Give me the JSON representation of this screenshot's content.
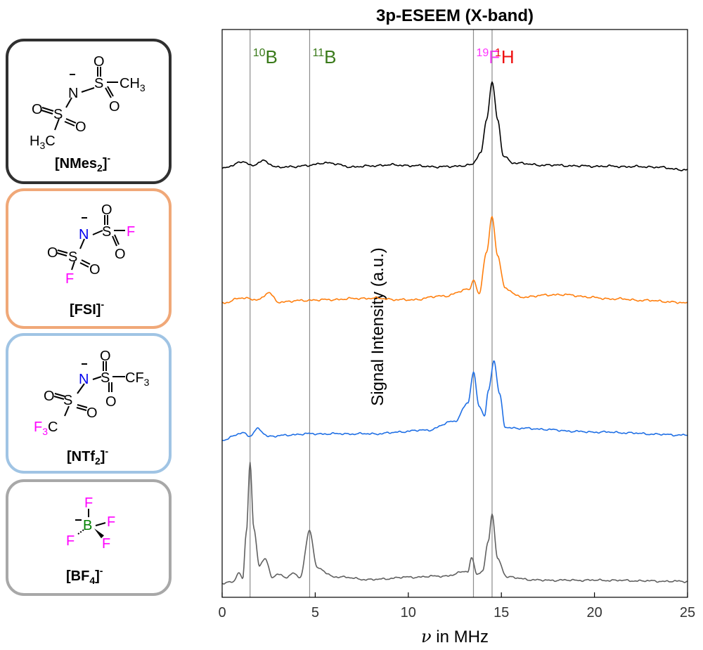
{
  "panels": [
    {
      "id": "nmes2",
      "label": "[NMes2]-",
      "label_main": "[NMes",
      "label_sub": "2",
      "label_end": "]",
      "label_sup": "-",
      "border_color": "#303030",
      "atoms": {
        "n": "N",
        "s1": "S",
        "s2": "S",
        "o1": "O",
        "o2": "O",
        "o3": "O",
        "o4": "O",
        "ch3": "CH",
        "ch3_sub": "3",
        "h3c_h": "H",
        "h3c_sub": "3",
        "h3c_c": "C",
        "charge": "–"
      }
    },
    {
      "id": "fsi",
      "label": "[FSI]-",
      "label_main": "[FSI]",
      "label_sup": "-",
      "border_color": "#f0a878",
      "atoms": {
        "n": "N",
        "s1": "S",
        "s2": "S",
        "o1": "O",
        "o2": "O",
        "o3": "O",
        "o4": "O",
        "f1": "F",
        "f2": "F",
        "charge": "–"
      }
    },
    {
      "id": "ntf2",
      "label": "[NTf2]-",
      "label_main": "[NTf",
      "label_sub": "2",
      "label_end": "]",
      "label_sup": "-",
      "border_color": "#a0c4e4",
      "atoms": {
        "n": "N",
        "s1": "S",
        "s2": "S",
        "o1": "O",
        "o2": "O",
        "o3": "O",
        "o4": "O",
        "cf3_c": "CF",
        "cf3_sub": "3",
        "f3c_f": "F",
        "f3c_sub": "3",
        "f3c_c": "C",
        "charge": "–"
      }
    },
    {
      "id": "bf4",
      "label": "[BF4]-",
      "label_main": "[BF",
      "label_sub": "4",
      "label_end": "]",
      "label_sup": "-",
      "border_color": "#a8a8a8",
      "atoms": {
        "b": "B",
        "f1": "F",
        "f2": "F",
        "f3": "F",
        "f4": "F",
        "charge": "–"
      }
    }
  ],
  "colors": {
    "fluorine": "#ff00ff",
    "nitrogen": "#0000ee",
    "boron": "#008000",
    "isotope_B": "#3a7a1a",
    "isotope_F": "#ff33ff",
    "isotope_H": "#ee1111"
  },
  "chart_data": {
    "type": "line",
    "title": "3p-ESEEM (X-band)",
    "xlabel_symbol": "ν",
    "xlabel_rest": " in MHz",
    "ylabel": "Signal Intensity (a.u.)",
    "xlim": [
      0,
      25
    ],
    "xticks": [
      0,
      5,
      10,
      15,
      20,
      25
    ],
    "yticks": "none",
    "reference_lines": [
      {
        "x": 1.5,
        "mass": "10",
        "element": "B",
        "color": "#3a7a1a"
      },
      {
        "x": 4.7,
        "mass": "11",
        "element": "B",
        "color": "#3a7a1a"
      },
      {
        "x": 13.5,
        "mass": "19",
        "element": "F",
        "color": "#ff33ff"
      },
      {
        "x": 14.5,
        "mass": "1",
        "element": "H",
        "color": "#ee1111"
      }
    ],
    "series": [
      {
        "color": "#000000",
        "noise_amp": 0.018,
        "points": [
          [
            0,
            0.14
          ],
          [
            1.2,
            0.26
          ],
          [
            1.6,
            0.18
          ],
          [
            2.2,
            0.27
          ],
          [
            3.0,
            0.16
          ],
          [
            4.7,
            0.19
          ],
          [
            5.5,
            0.24
          ],
          [
            7,
            0.17
          ],
          [
            9,
            0.2
          ],
          [
            12,
            0.17
          ],
          [
            13.4,
            0.2
          ],
          [
            13.9,
            0.4
          ],
          [
            14.2,
            0.95
          ],
          [
            14.5,
            1.58
          ],
          [
            14.8,
            0.95
          ],
          [
            15.1,
            0.35
          ],
          [
            15.6,
            0.24
          ],
          [
            17,
            0.2
          ],
          [
            20,
            0.18
          ],
          [
            23,
            0.17
          ],
          [
            25,
            0.12
          ]
        ]
      },
      {
        "color": "#ff7f0e",
        "noise_amp": 0.018,
        "points": [
          [
            0,
            0.16
          ],
          [
            1.0,
            0.24
          ],
          [
            2.0,
            0.22
          ],
          [
            2.5,
            0.33
          ],
          [
            3.0,
            0.18
          ],
          [
            5,
            0.21
          ],
          [
            8,
            0.24
          ],
          [
            10,
            0.21
          ],
          [
            12,
            0.28
          ],
          [
            13.3,
            0.39
          ],
          [
            13.5,
            0.56
          ],
          [
            13.8,
            0.3
          ],
          [
            14.2,
            1.0
          ],
          [
            14.5,
            1.58
          ],
          [
            14.8,
            0.95
          ],
          [
            15.2,
            0.4
          ],
          [
            16,
            0.26
          ],
          [
            18,
            0.3
          ],
          [
            21,
            0.23
          ],
          [
            23,
            0.2
          ],
          [
            25,
            0.16
          ]
        ]
      },
      {
        "color": "#1f6fe5",
        "noise_amp": 0.016,
        "points": [
          [
            0,
            0.13
          ],
          [
            1.1,
            0.26
          ],
          [
            1.5,
            0.2
          ],
          [
            1.9,
            0.32
          ],
          [
            2.5,
            0.2
          ],
          [
            4.7,
            0.24
          ],
          [
            8,
            0.24
          ],
          [
            11,
            0.3
          ],
          [
            12.5,
            0.45
          ],
          [
            13.2,
            0.75
          ],
          [
            13.5,
            1.25
          ],
          [
            13.8,
            0.7
          ],
          [
            14.1,
            0.55
          ],
          [
            14.3,
            0.95
          ],
          [
            14.6,
            1.45
          ],
          [
            14.9,
            0.9
          ],
          [
            15.2,
            0.35
          ],
          [
            16,
            0.33
          ],
          [
            20,
            0.27
          ],
          [
            25,
            0.22
          ]
        ]
      },
      {
        "color": "#606060",
        "noise_amp": 0.016,
        "points": [
          [
            0,
            0.0
          ],
          [
            0.6,
            0.03
          ],
          [
            0.9,
            0.17
          ],
          [
            1.1,
            0.06
          ],
          [
            1.3,
            0.85
          ],
          [
            1.5,
            2.0
          ],
          [
            1.7,
            0.9
          ],
          [
            2.0,
            0.3
          ],
          [
            2.3,
            0.4
          ],
          [
            2.7,
            0.1
          ],
          [
            3.0,
            0.15
          ],
          [
            3.5,
            0.1
          ],
          [
            3.8,
            0.16
          ],
          [
            4.2,
            0.1
          ],
          [
            4.7,
            0.88
          ],
          [
            5.1,
            0.25
          ],
          [
            6,
            0.11
          ],
          [
            8,
            0.06
          ],
          [
            10,
            0.1
          ],
          [
            12,
            0.12
          ],
          [
            13.2,
            0.2
          ],
          [
            13.4,
            0.42
          ],
          [
            13.7,
            0.15
          ],
          [
            14.0,
            0.2
          ],
          [
            14.3,
            0.7
          ],
          [
            14.5,
            1.15
          ],
          [
            14.8,
            0.4
          ],
          [
            15.3,
            0.1
          ],
          [
            17,
            0.05
          ],
          [
            20,
            0.05
          ],
          [
            25,
            0.03
          ]
        ]
      }
    ]
  }
}
